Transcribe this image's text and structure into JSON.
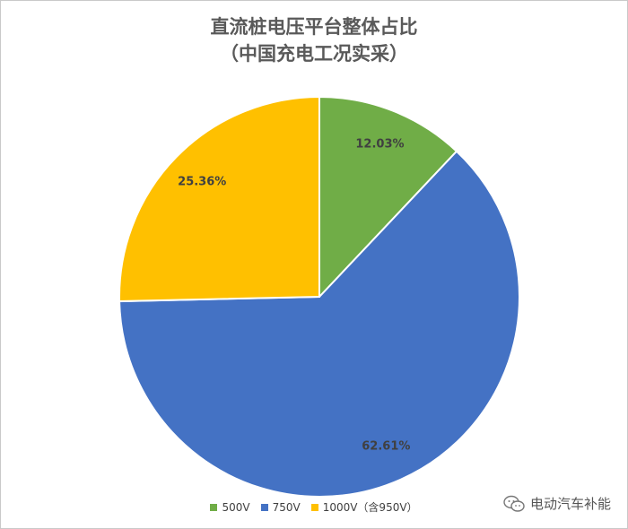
{
  "chart_data": {
    "type": "pie",
    "title_lines": [
      "直流桩电压平台整体占比",
      "（中国充电工况实采）"
    ],
    "categories": [
      "500V",
      "750V",
      "1000V（含950V）"
    ],
    "values": [
      12.03,
      62.61,
      25.36
    ],
    "data_labels": [
      "12.03%",
      "62.61%",
      "25.36%"
    ],
    "colors": [
      "#70AD47",
      "#4472C4",
      "#FFC000"
    ],
    "start_angle_deg": 0,
    "direction": "clockwise",
    "legend_position": "bottom"
  },
  "watermark": {
    "text": "电动汽车补能",
    "icon": "wechat-icon"
  }
}
